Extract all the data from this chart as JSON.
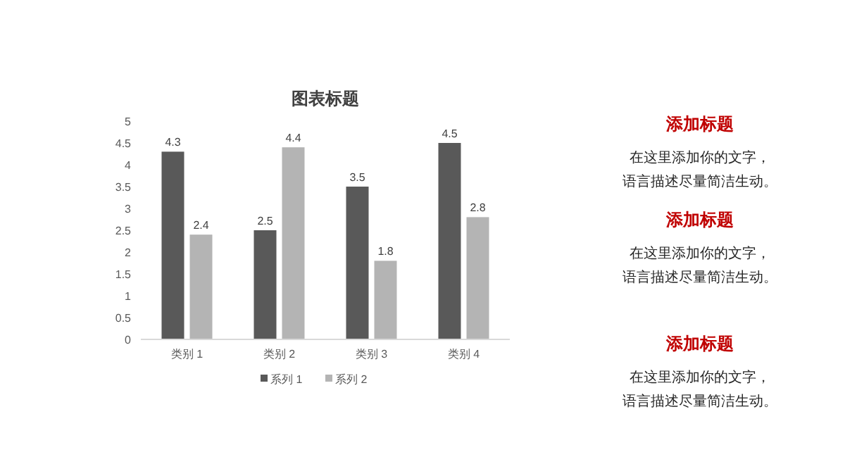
{
  "chart_data": [
    {
      "type": "bar",
      "title": "图表标题",
      "categories": [
        "类别 1",
        "类别 2",
        "类别 3",
        "类别 4"
      ],
      "series": [
        {
          "name": "系列 1",
          "color": "#595959",
          "values": [
            4.3,
            2.5,
            3.5,
            4.5
          ]
        },
        {
          "name": "系列 2",
          "color": "#b4b4b4",
          "values": [
            2.4,
            4.4,
            1.8,
            2.8
          ]
        }
      ],
      "ylim": [
        0,
        5
      ],
      "yticks": [
        0,
        0.5,
        1,
        1.5,
        2,
        2.5,
        3,
        3.5,
        4,
        4.5,
        5
      ],
      "data_labels": true,
      "legend": "bottom",
      "grid": false
    },
    {
      "type": "other",
      "title": "添加标题",
      "annotations": [
        "在这里添加你的文字，",
        "语言描述尽量简洁生动。"
      ]
    },
    {
      "type": "other",
      "title": "添加标题",
      "annotations": [
        "在这里添加你的文字，",
        "语言描述尽量简洁生动。"
      ]
    },
    {
      "type": "other",
      "title": "添加标题",
      "annotations": [
        "在这里添加你的文字，",
        "语言描述尽量简洁生动。"
      ]
    }
  ]
}
